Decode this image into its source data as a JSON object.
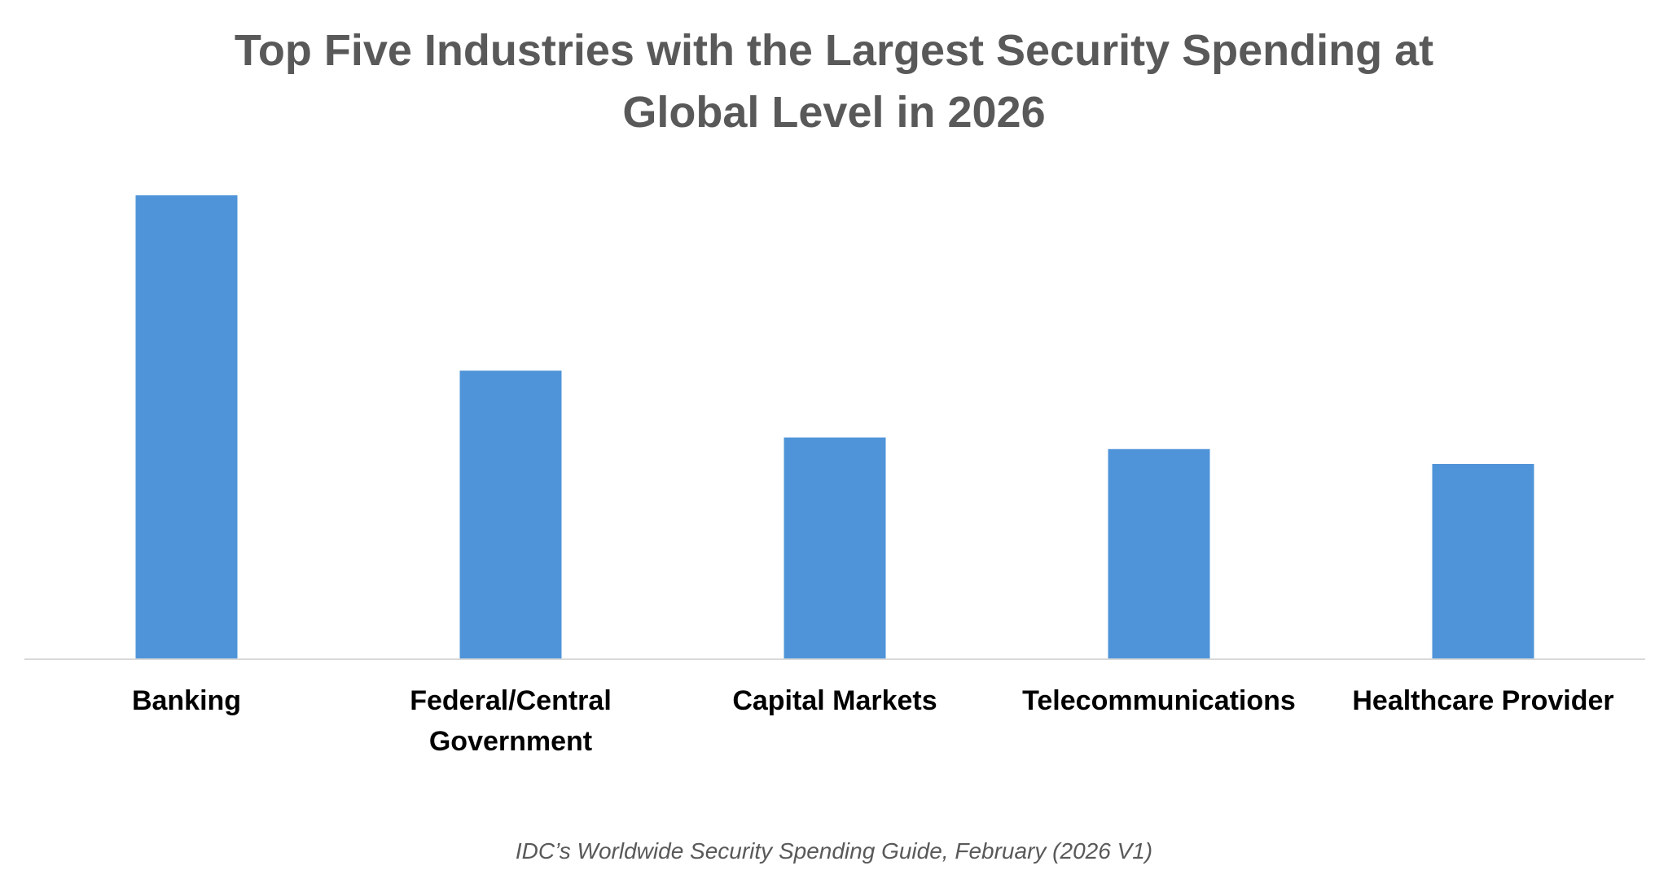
{
  "chart_data": {
    "type": "bar",
    "title_lines": [
      "Top Five Industries with the Largest Security Spending at",
      "Global Level in 2026"
    ],
    "categories": [
      [
        "Banking"
      ],
      [
        "Federal/Central",
        "Government"
      ],
      [
        "Capital Markets"
      ],
      [
        "Telecommunications"
      ],
      [
        "Healthcare Provider"
      ]
    ],
    "values": [
      100,
      62.2,
      47.8,
      45.3,
      42.1
    ],
    "ylim": [
      0,
      100
    ],
    "grid": false,
    "legend": false,
    "bar_color": "#4F94D9",
    "axis_color": "#D9D9D9",
    "label_color": "#000000"
  },
  "source": "IDC’s Worldwide Security Spending Guide, February (2026 V1)"
}
